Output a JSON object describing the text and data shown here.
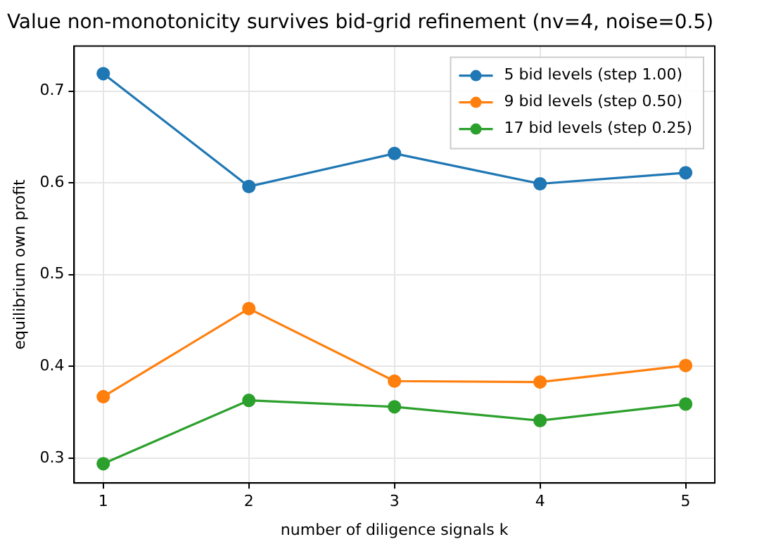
{
  "chart_data": {
    "type": "line",
    "title": "Value non-monotonicity survives bid-grid refinement (nv=4, noise=0.5)",
    "xlabel": "number of diligence signals k",
    "ylabel": "equilibrium own profit",
    "x": [
      1,
      2,
      3,
      4,
      5
    ],
    "series": [
      {
        "name": "5 bid levels (step 1.00)",
        "color": "#1f77b4",
        "values": [
          0.719,
          0.596,
          0.632,
          0.599,
          0.611
        ]
      },
      {
        "name": "9 bid levels (step 0.50)",
        "color": "#ff7f0e",
        "values": [
          0.367,
          0.463,
          0.384,
          0.383,
          0.401
        ]
      },
      {
        "name": "17 bid levels (step 0.25)",
        "color": "#2ca02c",
        "values": [
          0.294,
          0.363,
          0.356,
          0.341,
          0.359
        ]
      }
    ],
    "xlim": [
      0.8,
      5.2
    ],
    "xticks": [
      1,
      2,
      3,
      4,
      5
    ],
    "ylim": [
      0.273,
      0.749
    ],
    "yticks": [
      0.3,
      0.4,
      0.5,
      0.6,
      0.7
    ],
    "grid": true,
    "legend": "top right",
    "marker": "circle",
    "line_style": "solid"
  }
}
